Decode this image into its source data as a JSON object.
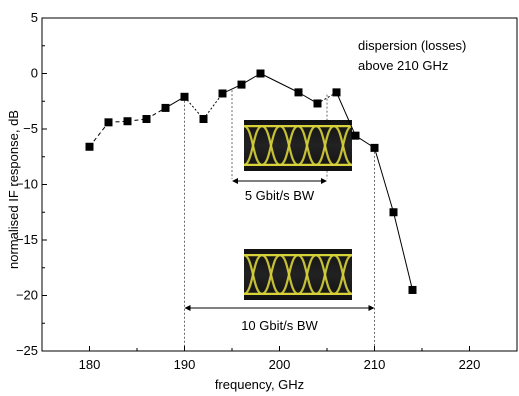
{
  "chart_data": {
    "type": "line",
    "xlabel": "frequency, GHz",
    "ylabel": "normalised IF response, dB",
    "xlim": [
      175,
      225
    ],
    "ylim": [
      -25,
      5
    ],
    "x_ticks": [
      180,
      190,
      200,
      210,
      220
    ],
    "y_ticks": [
      5,
      0,
      -5,
      -10,
      -15,
      -20,
      -25
    ],
    "grid": false,
    "series": [
      {
        "x": [
          180,
          182,
          184,
          186,
          188,
          190,
          192,
          194,
          196,
          198,
          202,
          204,
          206,
          208,
          210,
          212,
          214
        ],
        "y": [
          -6.6,
          -4.4,
          -4.3,
          -4.1,
          -3.1,
          -2.1,
          -4.1,
          -1.8,
          -1.0,
          0.0,
          -1.7,
          -2.7,
          -1.7,
          -5.6,
          -6.7,
          -12.5,
          -19.5
        ]
      }
    ],
    "dashed_segments": [
      [
        190,
        194
      ],
      [
        204,
        206
      ]
    ],
    "annotations": [
      {
        "text": "dispersion (losses)",
        "text2": "above 210 GHz"
      },
      {
        "text": "5 Gbit/s BW",
        "x_from": 195,
        "x_to": 205
      },
      {
        "text": "10 Gbit/s BW",
        "x_from": 190,
        "x_to": 210
      }
    ],
    "guide_lines": [
      {
        "x": 190,
        "y_from": -2.1,
        "y_to": -25
      },
      {
        "x": 210,
        "y_from": -6.7,
        "y_to": -25
      },
      {
        "x": 195,
        "y_from": -1.5,
        "y_to": -9.5
      },
      {
        "x": 205,
        "y_from": -1.9,
        "y_to": -9.5
      }
    ]
  }
}
